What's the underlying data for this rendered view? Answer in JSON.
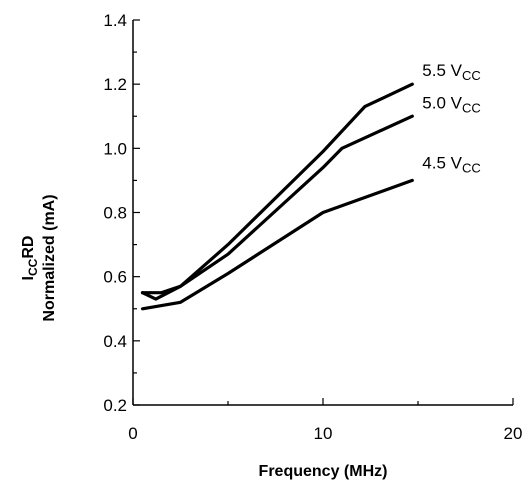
{
  "chart_data": {
    "type": "line",
    "xlabel": "Frequency (MHz)",
    "ylabel_main": "I",
    "ylabel_sub": "CC",
    "ylabel_tail": "RD",
    "ylabel_line2": "Normalized (mA)",
    "xlim": [
      0,
      20
    ],
    "ylim": [
      0.2,
      1.4
    ],
    "xticks": [
      0,
      10,
      20
    ],
    "xtick_labels": [
      "0",
      "10",
      "20"
    ],
    "yticks": [
      0.2,
      0.4,
      0.6,
      0.8,
      1.0,
      1.2,
      1.4
    ],
    "ytick_labels": [
      "0.2",
      "0.4",
      "0.6",
      "0.8",
      "1.0",
      "1.2",
      "1.4"
    ],
    "grid": false,
    "line_color": "#000000",
    "series": [
      {
        "name": "5.5 V",
        "name_sub": "CC",
        "x": [
          0.5,
          1.2,
          2.5,
          5.0,
          10.0,
          12.2,
          14.7
        ],
        "y": [
          0.55,
          0.53,
          0.57,
          0.7,
          0.99,
          1.13,
          1.2
        ]
      },
      {
        "name": "5.0 V",
        "name_sub": "CC",
        "x": [
          0.5,
          1.5,
          2.5,
          5.0,
          10.0,
          11.0,
          14.7
        ],
        "y": [
          0.55,
          0.55,
          0.57,
          0.67,
          0.94,
          1.0,
          1.1
        ]
      },
      {
        "name": "4.5 V",
        "name_sub": "CC",
        "x": [
          0.5,
          2.5,
          5.0,
          10.0,
          14.7
        ],
        "y": [
          0.5,
          0.52,
          0.61,
          0.8,
          0.9
        ]
      }
    ]
  }
}
